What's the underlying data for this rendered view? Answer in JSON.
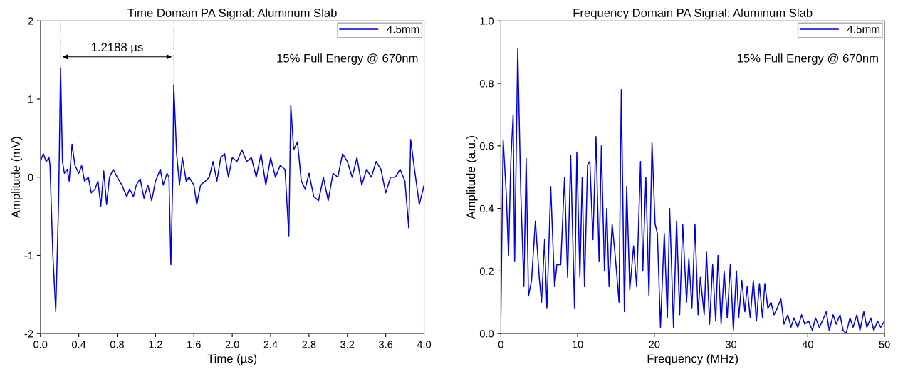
{
  "chart_data": [
    {
      "type": "line",
      "title": "Time Domain PA Signal: Aluminum Slab",
      "xlabel": "Time (µs)",
      "ylabel": "Amplitude (mV)",
      "xlim": [
        0,
        4
      ],
      "ylim": [
        -2,
        2
      ],
      "xticks": [
        {
          "value": 0,
          "label": "0.0"
        },
        0.4,
        0.8,
        1.2,
        1.6,
        {
          "value": 2,
          "label": "2.0"
        },
        2.4,
        2.8,
        3.2,
        3.6,
        {
          "value": 4,
          "label": "4.0"
        }
      ],
      "yticks": [
        -2,
        -1,
        0,
        1,
        2
      ],
      "grid": false,
      "legend": "top right",
      "annotations": [
        "1.2188 µs",
        "15% Full Energy @ 670nm"
      ],
      "ref_lines": [
        {
          "axis": "x",
          "value": 0.21,
          "color": "#999999",
          "line_style": "dotted"
        },
        {
          "axis": "x",
          "value": 1.39,
          "color": "#999999",
          "line_style": "dotted"
        }
      ],
      "series": [
        {
          "name": "4.5mm",
          "color": "#0000e0",
          "x": [
            0.0,
            0.03,
            0.06,
            0.09,
            0.1,
            0.13,
            0.16,
            0.19,
            0.21,
            0.23,
            0.25,
            0.28,
            0.3,
            0.33,
            0.36,
            0.4,
            0.43,
            0.46,
            0.5,
            0.53,
            0.57,
            0.6,
            0.63,
            0.66,
            0.69,
            0.72,
            0.76,
            0.8,
            0.85,
            0.9,
            0.93,
            0.97,
            1.0,
            1.04,
            1.08,
            1.12,
            1.16,
            1.2,
            1.25,
            1.28,
            1.32,
            1.34,
            1.36,
            1.38,
            1.39,
            1.42,
            1.45,
            1.48,
            1.52,
            1.55,
            1.6,
            1.63,
            1.67,
            1.72,
            1.76,
            1.8,
            1.84,
            1.88,
            1.92,
            1.96,
            2.0,
            2.05,
            2.1,
            2.15,
            2.2,
            2.25,
            2.3,
            2.35,
            2.4,
            2.45,
            2.5,
            2.55,
            2.59,
            2.61,
            2.64,
            2.68,
            2.72,
            2.76,
            2.8,
            2.85,
            2.9,
            2.95,
            3.0,
            3.05,
            3.1,
            3.15,
            3.2,
            3.25,
            3.3,
            3.35,
            3.4,
            3.45,
            3.5,
            3.55,
            3.6,
            3.65,
            3.7,
            3.75,
            3.8,
            3.84,
            3.86,
            3.9,
            3.95,
            4.0
          ],
          "values": [
            0.2,
            0.3,
            0.2,
            0.25,
            0.15,
            -1.0,
            -1.72,
            -0.3,
            1.4,
            0.2,
            0.05,
            0.1,
            -0.05,
            0.42,
            0.15,
            0.05,
            0.15,
            -0.05,
            0.0,
            -0.2,
            -0.15,
            -0.05,
            -0.37,
            0.08,
            -0.35,
            0.0,
            0.1,
            0.0,
            -0.1,
            -0.25,
            -0.15,
            -0.25,
            -0.1,
            -0.02,
            -0.27,
            -0.1,
            -0.3,
            -0.05,
            0.1,
            -0.1,
            0.05,
            0.0,
            -1.12,
            0.0,
            1.18,
            0.3,
            -0.1,
            0.25,
            -0.05,
            0.0,
            -0.1,
            -0.35,
            -0.1,
            -0.05,
            0.0,
            0.2,
            -0.05,
            0.25,
            0.3,
            0.0,
            0.25,
            0.2,
            0.35,
            0.2,
            0.25,
            0.0,
            0.3,
            -0.1,
            0.25,
            0.0,
            0.15,
            0.1,
            -0.75,
            0.92,
            0.35,
            0.45,
            -0.05,
            -0.15,
            0.05,
            -0.25,
            -0.3,
            0.0,
            -0.3,
            0.05,
            0.0,
            0.3,
            0.2,
            0.0,
            0.25,
            -0.1,
            0.1,
            0.0,
            0.2,
            0.1,
            -0.2,
            0.0,
            0.0,
            0.1,
            -0.05,
            -0.65,
            0.48,
            0.1,
            -0.35,
            -0.1
          ]
        }
      ]
    },
    {
      "type": "line",
      "title": "Frequency Domain PA Signal: Aluminum Slab",
      "xlabel": "Frequency (MHz)",
      "ylabel": "Amplitude (a.u.)",
      "xlim": [
        0,
        50
      ],
      "ylim": [
        0,
        1
      ],
      "xticks": [
        0,
        10,
        20,
        30,
        40,
        50
      ],
      "yticks": [
        {
          "value": 0,
          "label": "0.0"
        },
        0.2,
        0.4,
        0.6,
        0.8,
        {
          "value": 1,
          "label": "1.0"
        }
      ],
      "grid": false,
      "legend": "top right",
      "annotations": [
        "15% Full Energy @ 670nm"
      ],
      "series": [
        {
          "name": "4.5mm",
          "color": "#0000e0",
          "x": [
            0,
            0.3,
            0.7,
            1.0,
            1.3,
            1.6,
            1.8,
            2.2,
            2.6,
            3.0,
            3.3,
            3.6,
            4.0,
            4.5,
            5.0,
            5.3,
            5.7,
            6.0,
            6.5,
            7.0,
            7.3,
            7.8,
            8.3,
            8.7,
            9.1,
            9.6,
            9.9,
            10.3,
            10.6,
            10.9,
            11.3,
            11.6,
            12.0,
            12.4,
            12.8,
            13.1,
            13.5,
            13.8,
            14.1,
            14.5,
            14.9,
            15.4,
            15.7,
            16.1,
            16.4,
            16.8,
            17.3,
            17.7,
            18.2,
            18.5,
            18.9,
            19.3,
            19.7,
            20.1,
            20.4,
            20.8,
            21.3,
            21.7,
            22.0,
            22.5,
            22.9,
            23.3,
            23.7,
            24.2,
            24.5,
            24.9,
            25.3,
            25.7,
            26.0,
            26.5,
            26.8,
            27.2,
            27.6,
            28.0,
            28.3,
            28.7,
            29.1,
            29.5,
            29.9,
            30.3,
            30.7,
            31.0,
            31.4,
            31.8,
            32.1,
            32.5,
            32.9,
            33.3,
            33.7,
            34.1,
            34.4,
            34.8,
            35.2,
            35.6,
            36.0,
            36.5,
            36.9,
            37.4,
            37.8,
            38.2,
            38.7,
            39.2,
            39.6,
            40.1,
            40.6,
            41.0,
            41.5,
            41.9,
            42.4,
            42.8,
            43.3,
            43.7,
            44.2,
            44.6,
            45.0,
            45.5,
            45.9,
            46.4,
            46.8,
            47.3,
            47.7,
            48.2,
            48.6,
            49.1,
            49.5,
            50
          ],
          "values": [
            0.05,
            0.62,
            0.45,
            0.25,
            0.55,
            0.7,
            0.23,
            0.91,
            0.45,
            0.15,
            0.56,
            0.12,
            0.17,
            0.36,
            0.18,
            0.1,
            0.3,
            0.08,
            0.47,
            0.15,
            0.22,
            0.22,
            0.5,
            0.18,
            0.57,
            0.08,
            0.58,
            0.18,
            0.5,
            0.15,
            0.54,
            0.55,
            0.3,
            0.63,
            0.23,
            0.6,
            0.2,
            0.4,
            0.15,
            0.35,
            0.25,
            0.1,
            0.78,
            0.07,
            0.47,
            0.14,
            0.28,
            0.15,
            0.55,
            0.2,
            0.5,
            0.12,
            0.61,
            0.35,
            0.32,
            0.02,
            0.32,
            0.05,
            0.4,
            0.02,
            0.36,
            0.06,
            0.35,
            0.1,
            0.24,
            0.08,
            0.35,
            0.06,
            0.18,
            0.06,
            0.26,
            0.03,
            0.22,
            0.04,
            0.25,
            0.03,
            0.2,
            0.05,
            0.22,
            0.01,
            0.2,
            0.05,
            0.17,
            0.07,
            0.15,
            0.05,
            0.17,
            0.04,
            0.16,
            0.05,
            0.16,
            0.08,
            0.1,
            0.06,
            0.08,
            0.11,
            0.03,
            0.06,
            0.02,
            0.05,
            0.02,
            0.06,
            0.03,
            0.04,
            0.01,
            0.05,
            0.02,
            0.04,
            0.07,
            0.01,
            0.06,
            0.03,
            0.06,
            0.01,
            0.0,
            0.05,
            0.02,
            0.06,
            0.01,
            0.07,
            0.02,
            0.05,
            0.01,
            0.04,
            0.02,
            0.04
          ]
        }
      ]
    }
  ]
}
